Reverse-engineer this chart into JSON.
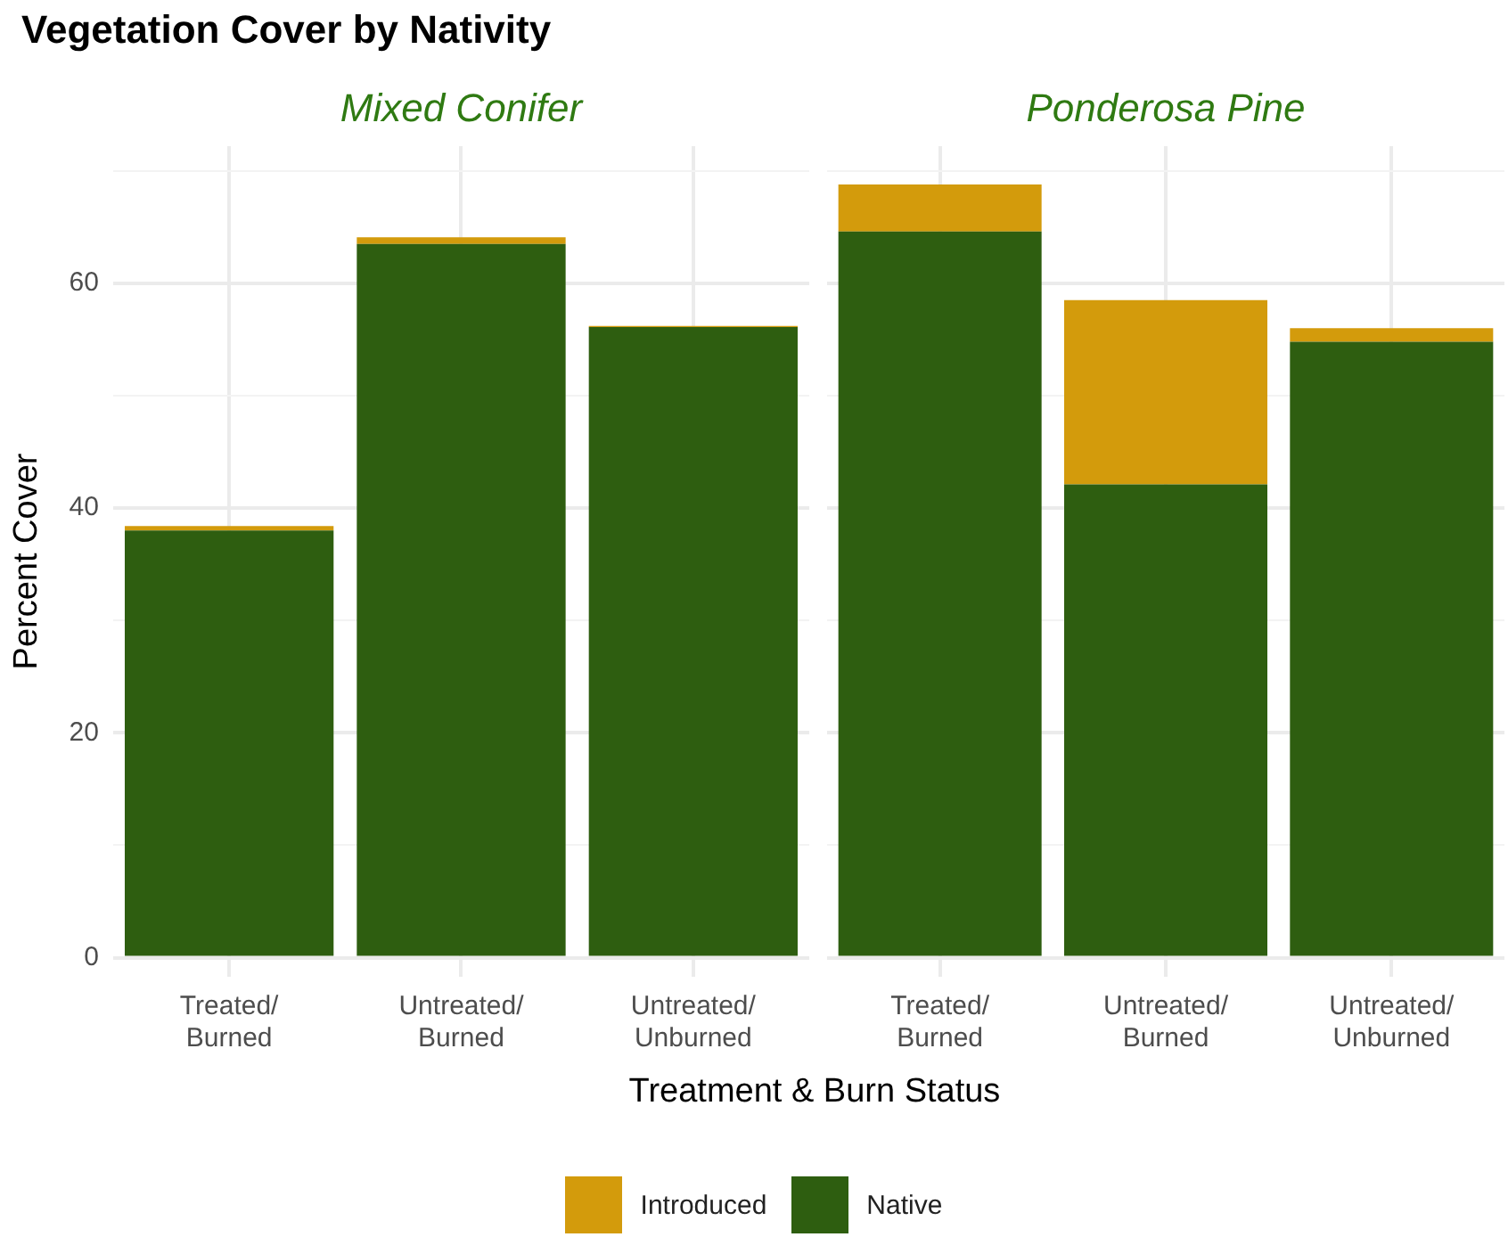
{
  "chart_data": [
    {
      "type": "bar",
      "title": "Vegetation Cover by Nativity",
      "subtitle": "Mixed Conifer",
      "xlabel": "Treatment & Burn Status",
      "ylabel": "Percent Cover",
      "categories": [
        "Treated/Burned",
        "Untreated/Burned",
        "Untreated/Unburned"
      ],
      "series": [
        {
          "name": "Native",
          "color": "#2e5e10",
          "values": [
            38.0,
            63.5,
            56.1
          ]
        },
        {
          "name": "Introduced",
          "color": "#d39b0c",
          "values": [
            0.4,
            0.6,
            0.1
          ]
        }
      ],
      "stacked": true,
      "ylim": [
        -1.7,
        72.2
      ],
      "yticks": [
        0,
        {
          "value": 10,
          "label": null
        },
        20,
        {
          "value": 30,
          "label": null
        },
        40,
        {
          "value": 50,
          "label": null
        },
        60,
        {
          "value": 70,
          "label": null
        }
      ],
      "grid": true,
      "legend": "bottom"
    },
    {
      "type": "bar",
      "subtitle": "Ponderosa Pine",
      "categories": [
        "Treated/Burned",
        "Untreated/Burned",
        "Untreated/Unburned"
      ],
      "series": [
        {
          "color": "#2e5e10",
          "values": [
            64.6,
            42.1,
            54.8
          ]
        },
        {
          "color": "#d39b0c",
          "values": [
            4.2,
            16.4,
            1.2
          ]
        }
      ],
      "stacked": true,
      "ylim": [
        -1.7,
        72.2
      ],
      "yticks": [
        0,
        {
          "value": 10,
          "label": null
        },
        20,
        {
          "value": 30,
          "label": null
        },
        40,
        {
          "value": 50,
          "label": null
        },
        60,
        {
          "value": 70,
          "label": null
        }
      ],
      "grid": true,
      "tick_labels": "x"
    }
  ]
}
